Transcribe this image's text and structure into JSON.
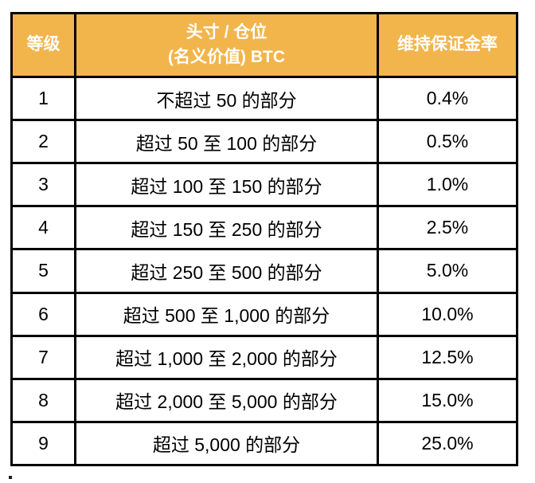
{
  "table": {
    "headers": {
      "tier": "等级",
      "position_line1": "头寸 / 仓位",
      "position_line2": "(名义价值) BTC",
      "rate": "维持保证金率"
    },
    "rows": [
      {
        "tier": "1",
        "range": "不超过 50 的部分",
        "rate": "0.4%"
      },
      {
        "tier": "2",
        "range": "超过 50 至 100 的部分",
        "rate": "0.5%"
      },
      {
        "tier": "3",
        "range": "超过 100 至 150 的部分",
        "rate": "1.0%"
      },
      {
        "tier": "4",
        "range": "超过 150 至 250 的部分",
        "rate": "2.5%"
      },
      {
        "tier": "5",
        "range": "超过 250 至 500 的部分",
        "rate": "5.0%"
      },
      {
        "tier": "6",
        "range": "超过 500 至 1,000 的部分",
        "rate": "10.0%"
      },
      {
        "tier": "7",
        "range": "超过 1,000 至 2,000 的部分",
        "rate": "12.5%"
      },
      {
        "tier": "8",
        "range": "超过 2,000 至 5,000 的部分",
        "rate": "15.0%"
      },
      {
        "tier": "9",
        "range": "超过 5,000 的部分",
        "rate": "25.0%"
      }
    ]
  },
  "stray_mark": ".",
  "colors": {
    "header_bg": "#F2B54C",
    "header_text": "#FFFFFF",
    "border": "#000000",
    "body_text": "#000000",
    "page_bg": "#FFFFFF"
  },
  "chart_data": {
    "type": "table",
    "title": "",
    "columns": [
      "等级",
      "头寸 / 仓位 (名义价值) BTC",
      "维持保证金率"
    ],
    "rows": [
      [
        "1",
        "不超过 50 的部分",
        "0.4%"
      ],
      [
        "2",
        "超过 50 至 100 的部分",
        "0.5%"
      ],
      [
        "3",
        "超过 100 至 150 的部分",
        "1.0%"
      ],
      [
        "4",
        "超过 150 至 250 的部分",
        "2.5%"
      ],
      [
        "5",
        "超过 250 至 500 的部分",
        "5.0%"
      ],
      [
        "6",
        "超过 500 至 1,000 的部分",
        "10.0%"
      ],
      [
        "7",
        "超过 1,000 至 2,000 的部分",
        "12.5%"
      ],
      [
        "8",
        "超过 2,000 至 5,000 的部分",
        "15.0%"
      ],
      [
        "9",
        "超过 5,000 的部分",
        "25.0%"
      ]
    ]
  }
}
